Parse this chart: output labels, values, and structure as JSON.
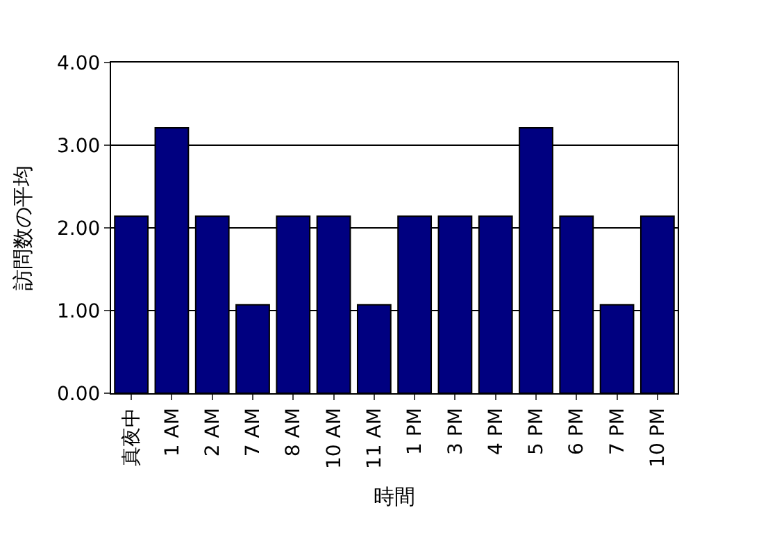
{
  "chart_data": {
    "type": "bar",
    "xlabel": "時間",
    "ylabel": "訪問数の平均",
    "categories": [
      "真夜中",
      "1 AM",
      "2 AM",
      "7 AM",
      "8 AM",
      "10 AM",
      "11 AM",
      "1 PM",
      "3 PM",
      "4 PM",
      "5 PM",
      "6 PM",
      "7 PM",
      "10 PM"
    ],
    "values": [
      2.14,
      3.21,
      2.14,
      1.07,
      2.14,
      2.14,
      1.07,
      2.14,
      2.14,
      2.14,
      3.21,
      2.14,
      1.07,
      2.14
    ],
    "color": "#000080",
    "ylim": [
      0,
      4
    ],
    "yticks": [
      {
        "value": 0,
        "label": "0.00"
      },
      {
        "value": 1,
        "label": "1.00"
      },
      {
        "value": 2,
        "label": "2.00"
      },
      {
        "value": 3,
        "label": "3.00"
      },
      {
        "value": 4,
        "label": "4.00"
      }
    ],
    "grid": "y"
  }
}
